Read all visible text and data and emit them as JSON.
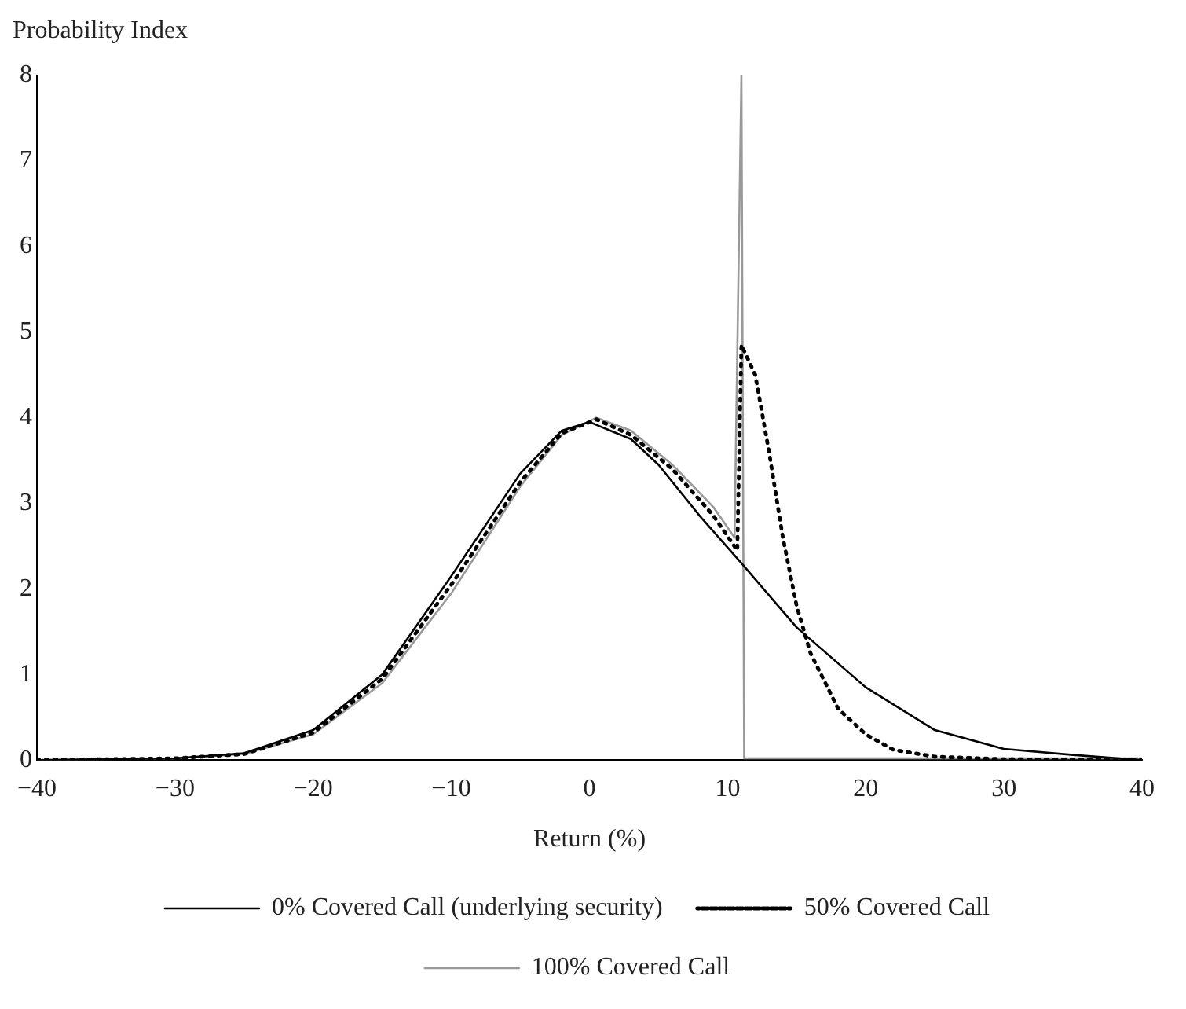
{
  "chart_data": {
    "type": "line",
    "xlabel": "Return (%)",
    "ylabel": "Probability Index",
    "xlim": [
      -40,
      40
    ],
    "xticks": [
      -40,
      -30,
      -20,
      -10,
      0,
      10,
      20,
      30,
      40
    ],
    "ylim": [
      0,
      8
    ],
    "yticks": [
      0,
      1,
      2,
      3,
      4,
      5,
      6,
      7,
      8
    ],
    "grid": false,
    "legend": "bottom",
    "marker": "none",
    "series": [
      {
        "name": "0% Covered Call (underlying security)",
        "color": "#000000",
        "line_style": "solid",
        "x": [
          -40,
          -30,
          -25,
          -20,
          -15,
          -10,
          -5,
          -2,
          0,
          3,
          5,
          8,
          11,
          15,
          20,
          25,
          30,
          35,
          40
        ],
        "values": [
          0,
          0.02,
          0.08,
          0.35,
          1.0,
          2.15,
          3.35,
          3.85,
          3.95,
          3.75,
          3.45,
          2.85,
          2.3,
          1.55,
          0.85,
          0.35,
          0.13,
          0.06,
          0
        ]
      },
      {
        "name": "50% Covered Call",
        "color": "#000000",
        "line_style": "dotted",
        "x": [
          -40,
          -30,
          -25,
          -20,
          -15,
          -10,
          -5,
          -2,
          0.5,
          3,
          6,
          9,
          10.7,
          11,
          12,
          13,
          14,
          15,
          16,
          18,
          20,
          22,
          25,
          30,
          40
        ],
        "values": [
          0,
          0.02,
          0.07,
          0.32,
          0.95,
          2.05,
          3.25,
          3.82,
          3.98,
          3.8,
          3.4,
          2.85,
          2.45,
          4.85,
          4.5,
          3.6,
          2.6,
          1.8,
          1.25,
          0.6,
          0.3,
          0.12,
          0.04,
          0.01,
          0
        ]
      },
      {
        "name": "100% Covered Call",
        "color": "#999999",
        "line_style": "solid",
        "x": [
          -40,
          -30,
          -25,
          -20,
          -15,
          -10,
          -5,
          -2,
          0.5,
          3,
          6,
          9,
          10.5,
          11,
          11.2,
          20,
          40
        ],
        "values": [
          0,
          0.02,
          0.07,
          0.3,
          0.9,
          1.95,
          3.2,
          3.8,
          4.0,
          3.85,
          3.45,
          2.95,
          2.6,
          8.0,
          0.02,
          0.02,
          0.02
        ]
      }
    ]
  }
}
